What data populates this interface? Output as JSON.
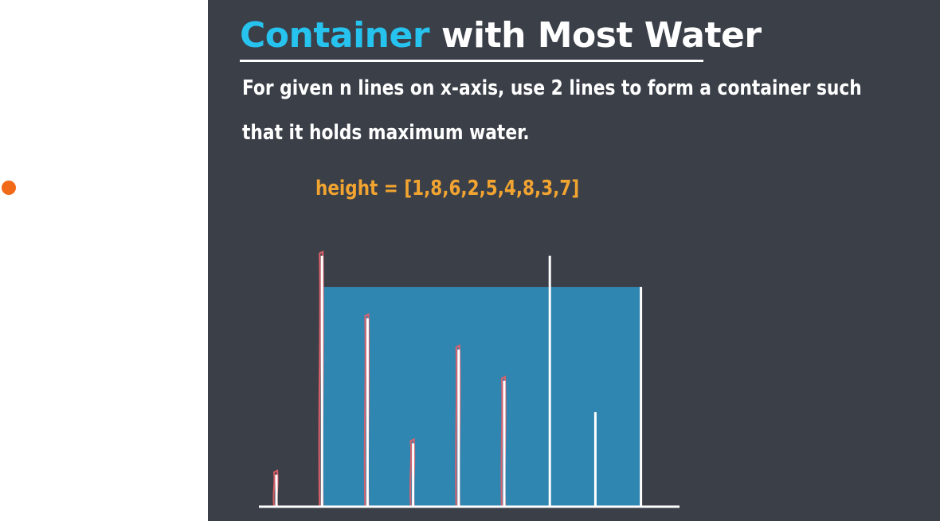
{
  "title": {
    "accent": "Container",
    "rest": " with Most Water"
  },
  "description": [
    "For given n lines on x-axis, use 2 lines to form a container such",
    "that it holds maximum water."
  ],
  "array_label": "height = [1,8,6,2,5,4,8,3,7]",
  "colors": {
    "background": "#3a3f48",
    "title_accent": "#27c3ef",
    "array_text": "#f2a431",
    "water": "#2f86b0",
    "line": "#ffffff",
    "annotation": "#e4606a",
    "pointer": "#f06a1a"
  },
  "chart_data": {
    "type": "bar",
    "heights": [
      1,
      8,
      6,
      2,
      5,
      4,
      8,
      3,
      7
    ],
    "container": {
      "left_index": 1,
      "right_index": 8,
      "water_level": 7
    },
    "highlighted_indices": [
      0,
      1,
      2,
      3,
      4,
      5
    ]
  }
}
